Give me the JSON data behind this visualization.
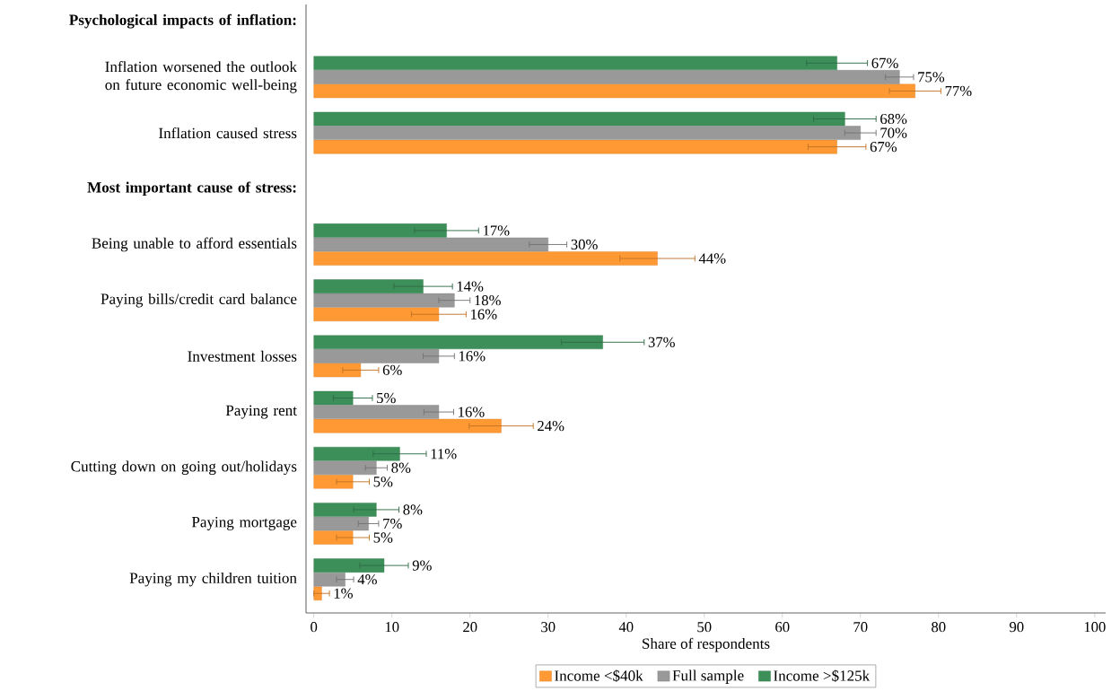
{
  "chart_data": {
    "type": "bar",
    "orientation": "horizontal",
    "xlabel": "Share of respondents",
    "annotations": [
      "Psychological impacts of inflation:",
      "Most important cause of stress:"
    ],
    "categories": [
      null,
      "Inflation worsened the outlook on future economic well-being",
      "Inflation caused stress",
      null,
      "Being unable to afford essentials",
      "Paying bills/credit card balance",
      "Investment losses",
      "Paying rent",
      "Cutting down on going out/holidays",
      "Paying mortgage",
      "Paying my children tuition"
    ],
    "series": [
      {
        "name": "Income <$40k",
        "color": "#ff9933",
        "values": [
          null,
          77,
          67,
          null,
          44,
          16,
          6,
          24,
          5,
          5,
          1
        ],
        "errors": [
          null,
          3.3,
          3.7,
          null,
          4.8,
          3.5,
          2.3,
          4.1,
          2.1,
          2.1,
          1.0
        ],
        "value_labels": [
          null,
          "77%",
          "67%",
          null,
          "44%",
          "16%",
          "6%",
          "24%",
          "5%",
          "5%",
          "1%"
        ]
      },
      {
        "name": "Full sample",
        "color": "#999999",
        "values": [
          null,
          75,
          70,
          null,
          30,
          18,
          16,
          16,
          8,
          7,
          4
        ],
        "errors": [
          null,
          1.8,
          2.0,
          null,
          2.4,
          2.0,
          2.0,
          1.9,
          1.4,
          1.3,
          1.1
        ],
        "value_labels": [
          null,
          "75%",
          "70%",
          null,
          "30%",
          "18%",
          "16%",
          "16%",
          "8%",
          "7%",
          "4%"
        ]
      },
      {
        "name": "Income >$125k",
        "color": "#3d8f5a",
        "values": [
          null,
          67,
          68,
          null,
          17,
          14,
          37,
          5,
          11,
          8,
          9
        ],
        "errors": [
          null,
          3.9,
          4.0,
          null,
          4.1,
          3.75,
          5.3,
          2.5,
          3.4,
          2.9,
          3.1
        ],
        "value_labels": [
          null,
          "67%",
          "68%",
          null,
          "17%",
          "14%",
          "37%",
          "5%",
          "11%",
          "8%",
          "9%"
        ]
      }
    ],
    "xlim": [
      -1,
      101.4
    ],
    "xticks": [
      0,
      10,
      20,
      30,
      40,
      50,
      60,
      70,
      80,
      90,
      100
    ],
    "grid": false,
    "legend": "bottom"
  }
}
